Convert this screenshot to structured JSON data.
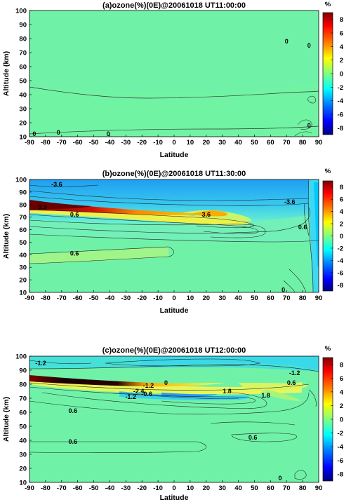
{
  "colorbar": {
    "unit": "%",
    "ticks": [
      8,
      6,
      4,
      2,
      0,
      -2,
      -4,
      -6,
      -8
    ],
    "range": [
      -9,
      9
    ],
    "colormap": [
      "#00007f",
      "#0000ff",
      "#007fff",
      "#00ffff",
      "#7fff7f",
      "#ffff00",
      "#ff7f00",
      "#ff0000",
      "#7f0000"
    ]
  },
  "chart_data": [
    {
      "type": "contour",
      "title": "(a)ozone(%)(0E)@20061018 UT11:00:00",
      "xlabel": "Latitude",
      "ylabel": "Altitude (km)",
      "xlim": [
        -90,
        90
      ],
      "ylim": [
        10,
        100
      ],
      "xticks": [
        -90,
        -80,
        -70,
        -60,
        -50,
        -40,
        -30,
        -20,
        -10,
        0,
        10,
        20,
        30,
        40,
        50,
        60,
        70,
        80,
        90
      ],
      "yticks": [
        10,
        20,
        30,
        40,
        50,
        60,
        70,
        80,
        90,
        100
      ],
      "contour_labels": [
        {
          "text": "0",
          "lat": 70,
          "alt": 78
        },
        {
          "text": "0",
          "lat": 84,
          "alt": 75
        },
        {
          "text": "0",
          "lat": -87,
          "alt": 12
        },
        {
          "text": "0",
          "lat": -72,
          "alt": 13
        },
        {
          "text": "0",
          "lat": -41,
          "alt": 12
        },
        {
          "text": "0",
          "lat": 84,
          "alt": 18
        }
      ]
    },
    {
      "type": "contour",
      "title": "(b)ozone(%)(0E)@20061018 UT11:30:00",
      "xlabel": "Latitude",
      "ylabel": "Altitude (km)",
      "xlim": [
        -90,
        90
      ],
      "ylim": [
        10,
        100
      ],
      "xticks": [
        -90,
        -80,
        -70,
        -60,
        -50,
        -40,
        -30,
        -20,
        -10,
        0,
        10,
        20,
        30,
        40,
        50,
        60,
        70,
        80,
        90
      ],
      "yticks": [
        10,
        20,
        30,
        40,
        50,
        60,
        70,
        80,
        90,
        100
      ],
      "contour_labels": [
        {
          "text": "-3.6",
          "lat": -73,
          "alt": 96
        },
        {
          "text": "-3.6",
          "lat": 72,
          "alt": 82
        },
        {
          "text": "3.6",
          "lat": 20,
          "alt": 72
        },
        {
          "text": "0.6",
          "lat": -62,
          "alt": 72
        },
        {
          "text": "0.6",
          "lat": -62,
          "alt": 41
        },
        {
          "text": "0.6",
          "lat": 80,
          "alt": 62
        },
        {
          "text": "0",
          "lat": 68,
          "alt": 12
        },
        {
          "text": "3.3",
          "lat": -82,
          "alt": 78
        }
      ]
    },
    {
      "type": "contour",
      "title": "(c)ozone(%)(0E)@20061018 UT12:00:00",
      "xlabel": "Latitude",
      "ylabel": "Altitude (km)",
      "xlim": [
        -90,
        90
      ],
      "ylim": [
        10,
        100
      ],
      "xticks": [
        -90,
        -80,
        -70,
        -60,
        -50,
        -40,
        -30,
        -20,
        -10,
        0,
        10,
        20,
        30,
        40,
        50,
        60,
        70,
        80,
        90
      ],
      "yticks": [
        10,
        20,
        30,
        40,
        50,
        60,
        70,
        80,
        90,
        100
      ],
      "contour_labels": [
        {
          "text": "-1.2",
          "lat": -83,
          "alt": 95
        },
        {
          "text": "-1.2",
          "lat": 75,
          "alt": 88
        },
        {
          "text": "-1.2",
          "lat": -16,
          "alt": 79
        },
        {
          "text": "-1.2",
          "lat": -27,
          "alt": 71
        },
        {
          "text": "-2.4",
          "lat": -22,
          "alt": 75
        },
        {
          "text": "1.8",
          "lat": 33,
          "alt": 75
        },
        {
          "text": "1.8",
          "lat": 57,
          "alt": 72
        },
        {
          "text": "0.6",
          "lat": 73,
          "alt": 81
        },
        {
          "text": "0.6",
          "lat": -63,
          "alt": 61
        },
        {
          "text": "0.6",
          "lat": -63,
          "alt": 39
        },
        {
          "text": "0.6",
          "lat": 49,
          "alt": 42
        },
        {
          "text": "0",
          "lat": -5,
          "alt": 81
        },
        {
          "text": "0",
          "lat": 66,
          "alt": 13
        },
        {
          "text": "-0.6",
          "lat": -17,
          "alt": 73
        }
      ]
    }
  ]
}
